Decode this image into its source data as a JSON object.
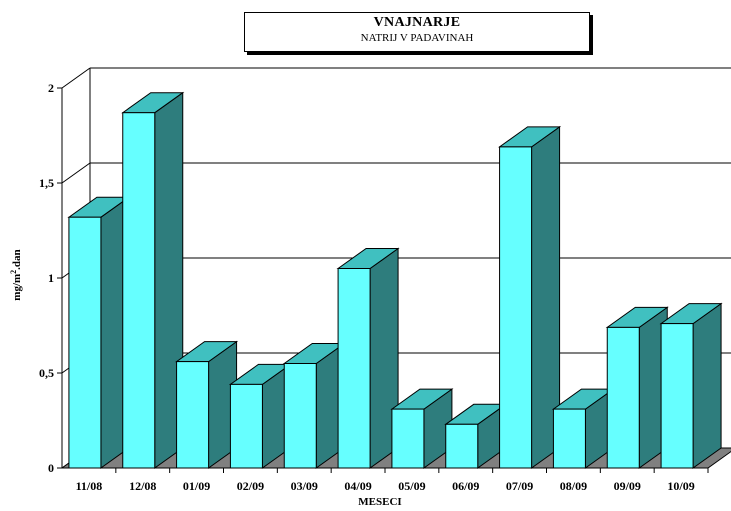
{
  "chart_data": {
    "type": "bar",
    "title": "VNAJNARJE",
    "subtitle": "NATRIJ V PADAVINAH",
    "xlabel": "MESECI",
    "ylabel_main": "mg/m",
    "ylabel_sup": "2",
    "ylabel_tail": ".dan",
    "categories": [
      "11/08",
      "12/08",
      "01/09",
      "02/09",
      "03/09",
      "04/09",
      "05/09",
      "06/09",
      "07/09",
      "08/09",
      "09/09",
      "10/09"
    ],
    "values": [
      1.32,
      1.87,
      0.56,
      0.44,
      0.55,
      1.05,
      0.31,
      0.23,
      1.69,
      0.31,
      0.74,
      0.76
    ],
    "ylim": [
      0,
      2
    ],
    "yticks": [
      0,
      0.5,
      1,
      1.5,
      2
    ],
    "ytick_labels": [
      "0",
      "0,5",
      "1",
      "1,5",
      "2"
    ],
    "grid": true,
    "colors": {
      "bar_front": "#66ffff",
      "bar_top": "#40c0c0",
      "bar_side": "#2e7d7d",
      "floor": "#808080"
    }
  }
}
